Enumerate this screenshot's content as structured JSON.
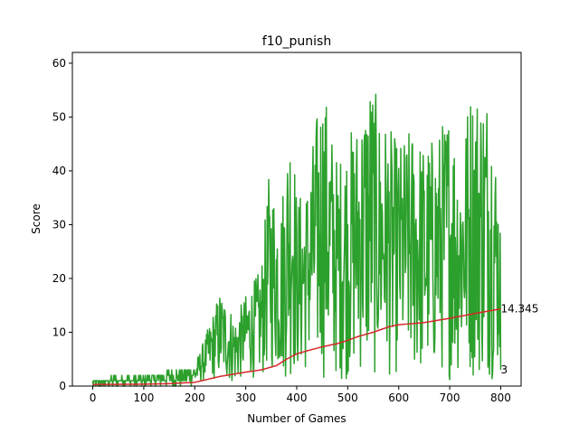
{
  "chart_data": {
    "type": "line",
    "title": "f10_punish",
    "xlabel": "Number of Games",
    "ylabel": "Score",
    "xlim": [
      -40,
      840
    ],
    "ylim": [
      0,
      62
    ],
    "xticks": [
      0,
      100,
      200,
      300,
      400,
      500,
      600,
      700,
      800
    ],
    "yticks": [
      0,
      10,
      20,
      30,
      40,
      50,
      60
    ],
    "grid": false,
    "legend": "none",
    "series": [
      {
        "role": "per-game score",
        "color": "#2ca02c",
        "envelope_x": [
          0,
          50,
          100,
          150,
          200,
          220,
          250,
          280,
          300,
          330,
          345,
          370,
          390,
          400,
          420,
          450,
          480,
          500,
          520,
          545,
          560,
          600,
          630,
          650,
          680,
          700,
          720,
          740,
          760,
          780,
          800
        ],
        "envelope_max": [
          1,
          2,
          2,
          3,
          4,
          9,
          18,
          13,
          17,
          22,
          39,
          35,
          55,
          35,
          38,
          58,
          42,
          47,
          50,
          59,
          52,
          45,
          49,
          45,
          48,
          53,
          44,
          56,
          57,
          56,
          33
        ],
        "envelope_min": [
          0,
          0,
          0,
          0,
          0,
          1,
          1,
          0,
          2,
          1,
          3,
          1,
          1,
          2,
          2,
          1,
          1,
          1,
          2,
          1,
          1,
          2,
          1,
          1,
          2,
          1,
          2,
          1,
          1,
          1,
          3
        ],
        "last_value": 3
      },
      {
        "role": "running mean",
        "color": "#d62728",
        "x": [
          0,
          100,
          150,
          200,
          250,
          300,
          330,
          360,
          380,
          400,
          430,
          450,
          480,
          500,
          520,
          550,
          580,
          600,
          650,
          700,
          750,
          800
        ],
        "values": [
          0.3,
          0.35,
          0.45,
          0.7,
          1.8,
          2.6,
          3.0,
          3.8,
          5.0,
          6.0,
          6.8,
          7.3,
          7.9,
          8.5,
          9.2,
          10.0,
          11.0,
          11.4,
          11.8,
          12.6,
          13.5,
          14.345
        ],
        "last_value": 14.345
      }
    ],
    "annotations": [
      "14.345",
      "3"
    ]
  }
}
